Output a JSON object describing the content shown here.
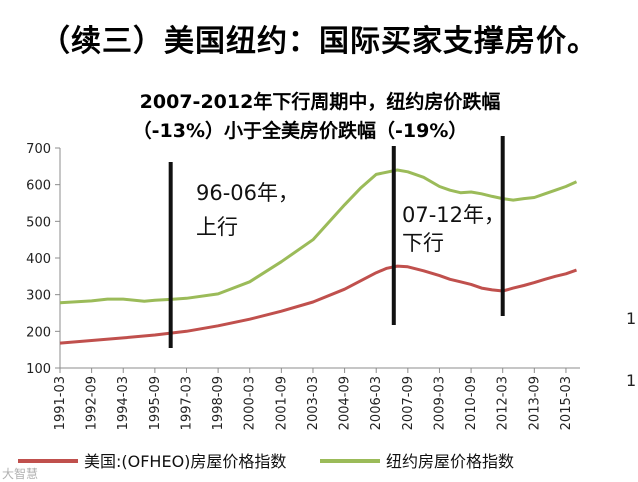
{
  "slide": {
    "title": "（续三）美国纽约：国际买家支撑房价。"
  },
  "chart_data": {
    "type": "line",
    "title_lines": [
      "2007-2012年下行周期中，纽约房价跌幅",
      "（-13%）小于全美房价跌幅（-19%）"
    ],
    "ylim": [
      100,
      700
    ],
    "yticks": [
      100,
      200,
      300,
      400,
      500,
      600,
      700
    ],
    "x_tick_labels": [
      "1991-03",
      "1992-09",
      "1994-03",
      "1995-09",
      "1997-03",
      "1998-09",
      "2000-03",
      "2001-09",
      "2003-03",
      "2004-09",
      "2006-03",
      "2007-09",
      "2009-03",
      "2010-09",
      "2012-03",
      "2013-09",
      "2015-03"
    ],
    "grid": false,
    "legend_position": "bottom",
    "series": [
      {
        "name": "美国:(OFHEO)房屋价格指数",
        "color": "#c0504d",
        "points": [
          [
            "1991-03",
            168
          ],
          [
            "1992-09",
            175
          ],
          [
            "1994-03",
            182
          ],
          [
            "1995-09",
            190
          ],
          [
            "1997-03",
            200
          ],
          [
            "1998-09",
            215
          ],
          [
            "2000-03",
            233
          ],
          [
            "2001-09",
            255
          ],
          [
            "2003-03",
            280
          ],
          [
            "2004-09",
            315
          ],
          [
            "2006-03",
            360
          ],
          [
            "2006-09",
            372
          ],
          [
            "2007-03",
            378
          ],
          [
            "2007-09",
            376
          ],
          [
            "2008-06",
            365
          ],
          [
            "2009-03",
            352
          ],
          [
            "2009-09",
            342
          ],
          [
            "2010-03",
            335
          ],
          [
            "2010-09",
            328
          ],
          [
            "2011-03",
            318
          ],
          [
            "2011-09",
            313
          ],
          [
            "2012-03",
            310
          ],
          [
            "2012-09",
            318
          ],
          [
            "2013-03",
            325
          ],
          [
            "2013-09",
            333
          ],
          [
            "2014-03",
            342
          ],
          [
            "2014-09",
            350
          ],
          [
            "2015-03",
            357
          ],
          [
            "2015-09",
            367
          ]
        ]
      },
      {
        "name": "纽约房屋价格指数",
        "color": "#9bbb59",
        "points": [
          [
            "1991-03",
            278
          ],
          [
            "1992-09",
            283
          ],
          [
            "1993-06",
            288
          ],
          [
            "1994-03",
            288
          ],
          [
            "1995-03",
            282
          ],
          [
            "1995-09",
            285
          ],
          [
            "1996-06",
            287
          ],
          [
            "1997-03",
            290
          ],
          [
            "1998-09",
            302
          ],
          [
            "2000-03",
            335
          ],
          [
            "2001-09",
            390
          ],
          [
            "2003-03",
            450
          ],
          [
            "2004-09",
            545
          ],
          [
            "2005-06",
            590
          ],
          [
            "2006-03",
            628
          ],
          [
            "2007-03",
            640
          ],
          [
            "2007-09",
            635
          ],
          [
            "2008-06",
            620
          ],
          [
            "2009-03",
            595
          ],
          [
            "2009-09",
            585
          ],
          [
            "2010-03",
            578
          ],
          [
            "2010-09",
            580
          ],
          [
            "2011-03",
            575
          ],
          [
            "2011-09",
            568
          ],
          [
            "2012-03",
            562
          ],
          [
            "2012-09",
            558
          ],
          [
            "2013-03",
            562
          ],
          [
            "2013-09",
            565
          ],
          [
            "2014-03",
            575
          ],
          [
            "2014-09",
            585
          ],
          [
            "2015-03",
            595
          ],
          [
            "2015-09",
            608
          ]
        ]
      }
    ],
    "annotations": [
      {
        "lines": [
          "96-06年，",
          "上行"
        ]
      },
      {
        "lines": [
          "07-12年，",
          "下行"
        ]
      }
    ],
    "vertical_markers": [
      "1996-06",
      "2007-01",
      "2012-03"
    ]
  },
  "edge_marks": [
    "1",
    "1"
  ],
  "watermark": "大智慧"
}
